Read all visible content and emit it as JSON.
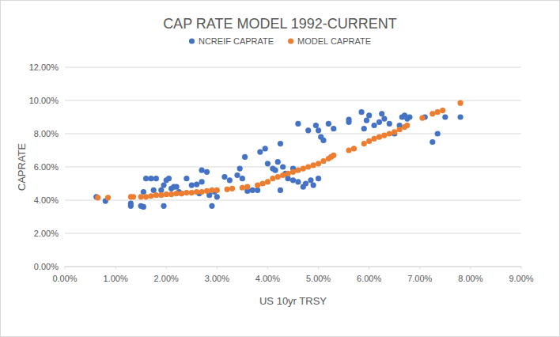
{
  "chart_data": {
    "type": "scatter",
    "title": "CAP RATE MODEL 1992-CURRENT",
    "x_label": "US 10yr TRSY",
    "y_label": "CAPRATE",
    "xlim": [
      0,
      9
    ],
    "ylim": [
      0,
      12
    ],
    "xticks": [
      {
        "value": 0,
        "label": "0.00%"
      },
      {
        "value": 1,
        "label": "1.00%"
      },
      {
        "value": 2,
        "label": "2.00%"
      },
      {
        "value": 3,
        "label": "3.00%"
      },
      {
        "value": 4,
        "label": "4.00%"
      },
      {
        "value": 5,
        "label": "5.00%"
      },
      {
        "value": 6,
        "label": "6.00%"
      },
      {
        "value": 7,
        "label": "7.00%"
      },
      {
        "value": 8,
        "label": "8.00%"
      },
      {
        "value": 9,
        "label": "9.00%"
      }
    ],
    "yticks": [
      {
        "value": 0,
        "label": "0.00%"
      },
      {
        "value": 2,
        "label": "2.00%"
      },
      {
        "value": 4,
        "label": "4.00%"
      },
      {
        "value": 6,
        "label": "6.00%"
      },
      {
        "value": 8,
        "label": "8.00%"
      },
      {
        "value": 10,
        "label": "10.00%"
      },
      {
        "value": 12,
        "label": "12.00%"
      }
    ],
    "grid": true,
    "legend": "top",
    "marker": "circle",
    "series": [
      {
        "name": "NCREIF CAPRATE",
        "color": "#4472c4",
        "x": [
          0.62,
          0.8,
          1.3,
          1.3,
          1.5,
          1.55,
          1.55,
          1.6,
          1.7,
          1.75,
          1.8,
          1.9,
          1.95,
          2.0,
          2.05,
          1.95,
          2.1,
          2.15,
          2.2,
          2.25,
          2.3,
          2.4,
          2.5,
          2.6,
          2.65,
          2.7,
          2.7,
          2.8,
          2.85,
          2.9,
          2.95,
          3.0,
          3.15,
          3.25,
          3.4,
          3.45,
          3.5,
          3.55,
          3.6,
          3.7,
          3.8,
          3.85,
          3.95,
          4.0,
          4.1,
          4.15,
          4.2,
          4.25,
          4.25,
          4.3,
          4.35,
          4.4,
          4.5,
          4.5,
          4.6,
          4.6,
          4.7,
          4.75,
          4.8,
          4.85,
          4.9,
          4.95,
          5.0,
          5.0,
          5.05,
          5.1,
          5.2,
          5.3,
          5.6,
          5.6,
          5.85,
          5.9,
          5.95,
          6.0,
          6.1,
          6.2,
          6.25,
          6.3,
          6.4,
          6.5,
          6.6,
          6.65,
          6.7,
          6.75,
          6.8,
          7.1,
          7.25,
          7.35,
          7.5,
          7.8
        ],
        "values": [
          4.2,
          3.95,
          3.65,
          3.8,
          3.65,
          3.6,
          4.5,
          5.3,
          5.3,
          4.6,
          5.3,
          4.6,
          4.9,
          5.2,
          5.3,
          3.65,
          4.7,
          4.8,
          4.8,
          4.5,
          4.4,
          5.3,
          4.9,
          4.95,
          4.4,
          5.1,
          5.8,
          5.7,
          4.3,
          3.65,
          4.5,
          4.2,
          5.4,
          5.2,
          5.5,
          5.9,
          5.3,
          6.6,
          4.55,
          4.6,
          4.6,
          6.9,
          7.1,
          6.2,
          5.9,
          5.8,
          6.3,
          4.6,
          7.4,
          6.0,
          5.6,
          5.3,
          5.2,
          5.9,
          8.6,
          5.1,
          4.8,
          5.0,
          8.2,
          5.2,
          4.9,
          8.5,
          8.2,
          5.3,
          7.8,
          7.6,
          8.6,
          8.3,
          8.7,
          8.85,
          9.3,
          8.3,
          8.8,
          9.1,
          8.5,
          8.7,
          9.2,
          8.9,
          8.6,
          8.0,
          8.5,
          9.0,
          9.1,
          8.9,
          9.0,
          9.0,
          7.5,
          8.0,
          9.0,
          9.0
        ]
      },
      {
        "name": "MODEL CAPRATE",
        "color": "#ed7d31",
        "x": [
          0.65,
          0.85,
          1.3,
          1.35,
          1.5,
          1.6,
          1.7,
          1.8,
          1.9,
          2.0,
          2.1,
          2.2,
          2.3,
          2.4,
          2.5,
          2.6,
          2.7,
          2.8,
          2.9,
          3.0,
          3.2,
          3.3,
          3.5,
          3.6,
          3.8,
          3.9,
          4.0,
          4.1,
          4.2,
          4.3,
          4.4,
          4.5,
          4.6,
          4.7,
          4.8,
          4.9,
          5.0,
          5.1,
          5.2,
          5.25,
          5.3,
          5.6,
          5.7,
          5.9,
          6.0,
          6.1,
          6.2,
          6.3,
          6.4,
          6.5,
          6.6,
          6.7,
          6.75,
          7.05,
          7.25,
          7.35,
          7.45,
          7.8
        ],
        "values": [
          4.15,
          4.15,
          4.2,
          4.2,
          4.2,
          4.2,
          4.25,
          4.3,
          4.3,
          4.35,
          4.35,
          4.4,
          4.4,
          4.45,
          4.45,
          4.5,
          4.5,
          4.55,
          4.6,
          4.6,
          4.65,
          4.7,
          4.75,
          4.8,
          4.9,
          5.0,
          5.1,
          5.3,
          5.4,
          5.5,
          5.6,
          5.7,
          5.8,
          5.9,
          6.0,
          6.1,
          6.2,
          6.35,
          6.5,
          6.6,
          6.7,
          7.0,
          7.1,
          7.4,
          7.55,
          7.7,
          7.8,
          7.9,
          8.0,
          8.1,
          8.25,
          8.4,
          8.5,
          8.95,
          9.2,
          9.3,
          9.4,
          9.85
        ]
      }
    ]
  }
}
